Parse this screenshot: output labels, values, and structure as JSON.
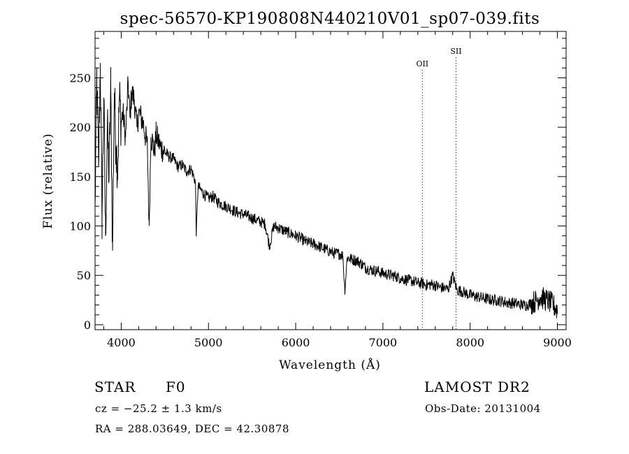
{
  "chart_data": {
    "type": "line",
    "title": "spec-56570-KP190808N440210V01_sp07-039.fits",
    "xlabel": "Wavelength (Å)",
    "ylabel": "Flux (relative)",
    "xlim": [
      3700,
      9100
    ],
    "ylim": [
      -5,
      297
    ],
    "x_ticks": [
      "4000",
      "5000",
      "6000",
      "7000",
      "8000",
      "9000"
    ],
    "y_ticks": [
      "0",
      "50",
      "100",
      "150",
      "200",
      "250"
    ],
    "series": [
      {
        "x": [
          3700,
          3720,
          3740,
          3760,
          3780,
          3800,
          3820,
          3840,
          3860,
          3880,
          3900,
          3920,
          3940,
          3960,
          3980,
          4000,
          4020,
          4050,
          4080,
          4100,
          4120,
          4150,
          4180,
          4200,
          4250,
          4300,
          4320,
          4340,
          4360,
          4380,
          4400,
          4450,
          4500,
          4550,
          4600,
          4650,
          4700,
          4750,
          4800,
          4850,
          4861,
          4880,
          4900,
          4950,
          5000,
          5050,
          5100,
          5150,
          5200,
          5250,
          5300,
          5350,
          5400,
          5450,
          5500,
          5550,
          5600,
          5650,
          5700,
          5750,
          5800,
          5850,
          5900,
          5950,
          6000,
          6050,
          6100,
          6150,
          6200,
          6250,
          6300,
          6350,
          6400,
          6450,
          6500,
          6540,
          6563,
          6590,
          6650,
          6700,
          6750,
          6800,
          6850,
          6900,
          6950,
          7000,
          7050,
          7100,
          7150,
          7200,
          7250,
          7300,
          7350,
          7400,
          7450,
          7500,
          7550,
          7600,
          7650,
          7700,
          7750,
          7800,
          7850,
          7900,
          7950,
          8000,
          8050,
          8100,
          8150,
          8200,
          8250,
          8300,
          8350,
          8400,
          8450,
          8500,
          8550,
          8600,
          8650,
          8700,
          8750,
          8800,
          8850,
          8900,
          8950,
          9000
        ],
        "y": [
          120,
          250,
          160,
          265,
          110,
          230,
          90,
          200,
          150,
          240,
          75,
          235,
          180,
          160,
          230,
          205,
          215,
          190,
          245,
          210,
          235,
          228,
          200,
          215,
          205,
          180,
          100,
          190,
          185,
          175,
          192,
          180,
          175,
          170,
          168,
          160,
          162,
          155,
          158,
          145,
          90,
          140,
          138,
          132,
          128,
          130,
          125,
          122,
          120,
          118,
          115,
          113,
          112,
          110,
          108,
          106,
          104,
          102,
          80,
          100,
          98,
          96,
          94,
          92,
          90,
          88,
          85,
          83,
          82,
          80,
          78,
          76,
          74,
          72,
          72,
          70,
          35,
          68,
          66,
          65,
          62,
          58,
          56,
          55,
          54,
          52,
          51,
          50,
          49,
          47,
          46,
          45,
          44,
          42,
          42,
          40,
          41,
          40,
          38,
          37,
          36,
          50,
          35,
          34,
          32,
          30,
          29,
          28,
          27,
          26,
          25,
          25,
          24,
          23,
          22,
          22,
          21,
          20,
          20,
          22,
          24,
          28,
          26,
          24,
          20,
          15
        ]
      }
    ],
    "annotations": [
      {
        "label": "OII",
        "x": 7452
      },
      {
        "label": "SII",
        "x": 7838
      }
    ],
    "grid": false,
    "legend": "none"
  },
  "info": {
    "object_class": "STAR",
    "subclass": "F0",
    "cz": "cz = −25.2 ± 1.3 km/s",
    "coords": "RA = 288.03649, DEC =  42.30878",
    "survey": "LAMOST DR2",
    "obs_date": "Obs-Date: 20131004"
  }
}
